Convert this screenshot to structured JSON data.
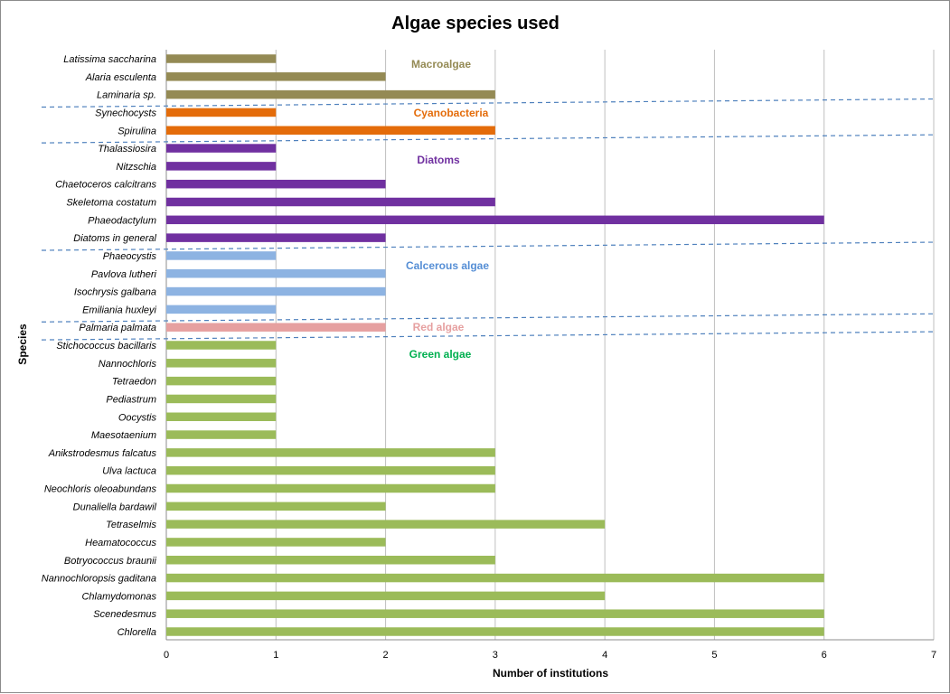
{
  "chart_data": {
    "type": "bar",
    "orientation": "horizontal",
    "title": "Algae species used",
    "xlabel": "Number of institutions",
    "ylabel": "Species",
    "xlim": [
      0,
      7
    ],
    "xticks": [
      "0",
      "1",
      "2",
      "3",
      "4",
      "5",
      "6",
      "7"
    ],
    "grid": "vertical",
    "colors": {
      "macroalgae": "#948a54",
      "cyanobacteria": "#e46c0a",
      "diatoms": "#7030a0",
      "calcerous": "#8db3e2",
      "red": "#e6a0a0",
      "green": "#9bbb59",
      "separator": "#4f81bd",
      "gridline": "#bfbfbf"
    },
    "groups": [
      {
        "key": "macroalgae",
        "label": "Macroalgae",
        "label_color": "#948a54"
      },
      {
        "key": "cyanobacteria",
        "label": "Cyanobacteria",
        "label_color": "#e46c0a"
      },
      {
        "key": "diatoms",
        "label": "Diatoms",
        "label_color": "#7030a0"
      },
      {
        "key": "calcerous",
        "label": "Calcerous algae",
        "label_color": "#558ed5"
      },
      {
        "key": "red",
        "label": "Red algae",
        "label_color": "#e6a0a0"
      },
      {
        "key": "green",
        "label": "Green algae",
        "label_color": "#00b050"
      }
    ],
    "categories": [
      {
        "name": "Latissima saccharina",
        "value": 1,
        "group": "macroalgae"
      },
      {
        "name": "Alaria esculenta",
        "value": 2,
        "group": "macroalgae"
      },
      {
        "name": "Laminaria sp.",
        "value": 3,
        "group": "macroalgae"
      },
      {
        "name": "Synechocysts",
        "value": 1,
        "group": "cyanobacteria"
      },
      {
        "name": "Spirulina",
        "value": 3,
        "group": "cyanobacteria"
      },
      {
        "name": "Thalassiosira",
        "value": 1,
        "group": "diatoms"
      },
      {
        "name": "Nitzschia",
        "value": 1,
        "group": "diatoms"
      },
      {
        "name": "Chaetoceros calcitrans",
        "value": 2,
        "group": "diatoms"
      },
      {
        "name": "Skeletoma costatum",
        "value": 3,
        "group": "diatoms"
      },
      {
        "name": "Phaeodactylum",
        "value": 6,
        "group": "diatoms"
      },
      {
        "name": "Diatoms in general",
        "value": 2,
        "group": "diatoms"
      },
      {
        "name": "Phaeocystis",
        "value": 1,
        "group": "calcerous"
      },
      {
        "name": "Pavlova lutheri",
        "value": 2,
        "group": "calcerous"
      },
      {
        "name": "Isochrysis galbana",
        "value": 2,
        "group": "calcerous"
      },
      {
        "name": "Emiliania huxleyi",
        "value": 1,
        "group": "calcerous"
      },
      {
        "name": "Palmaria palmata",
        "value": 2,
        "group": "red"
      },
      {
        "name": "Stichococcus bacillaris",
        "value": 1,
        "group": "green"
      },
      {
        "name": "Nannochloris",
        "value": 1,
        "group": "green"
      },
      {
        "name": "Tetraedon",
        "value": 1,
        "group": "green"
      },
      {
        "name": "Pediastrum",
        "value": 1,
        "group": "green"
      },
      {
        "name": "Oocystis",
        "value": 1,
        "group": "green"
      },
      {
        "name": "Maesotaenium",
        "value": 1,
        "group": "green"
      },
      {
        "name": "Anikstrodesmus falcatus",
        "value": 3,
        "group": "green"
      },
      {
        "name": "Ulva lactuca",
        "value": 3,
        "group": "green"
      },
      {
        "name": "Neochloris oleoabundans",
        "value": 3,
        "group": "green"
      },
      {
        "name": "Dunaliella bardawil",
        "value": 2,
        "group": "green"
      },
      {
        "name": "Tetraselmis",
        "value": 4,
        "group": "green"
      },
      {
        "name": "Heamatococcus",
        "value": 2,
        "group": "green"
      },
      {
        "name": "Botryococcus braunii",
        "value": 3,
        "group": "green"
      },
      {
        "name": "Nannochloropsis gaditana",
        "value": 6,
        "group": "green"
      },
      {
        "name": "Chlamydomonas",
        "value": 4,
        "group": "green"
      },
      {
        "name": "Scenedesmus",
        "value": 6,
        "group": "green"
      },
      {
        "name": "Chlorella",
        "value": 6,
        "group": "green"
      }
    ]
  }
}
